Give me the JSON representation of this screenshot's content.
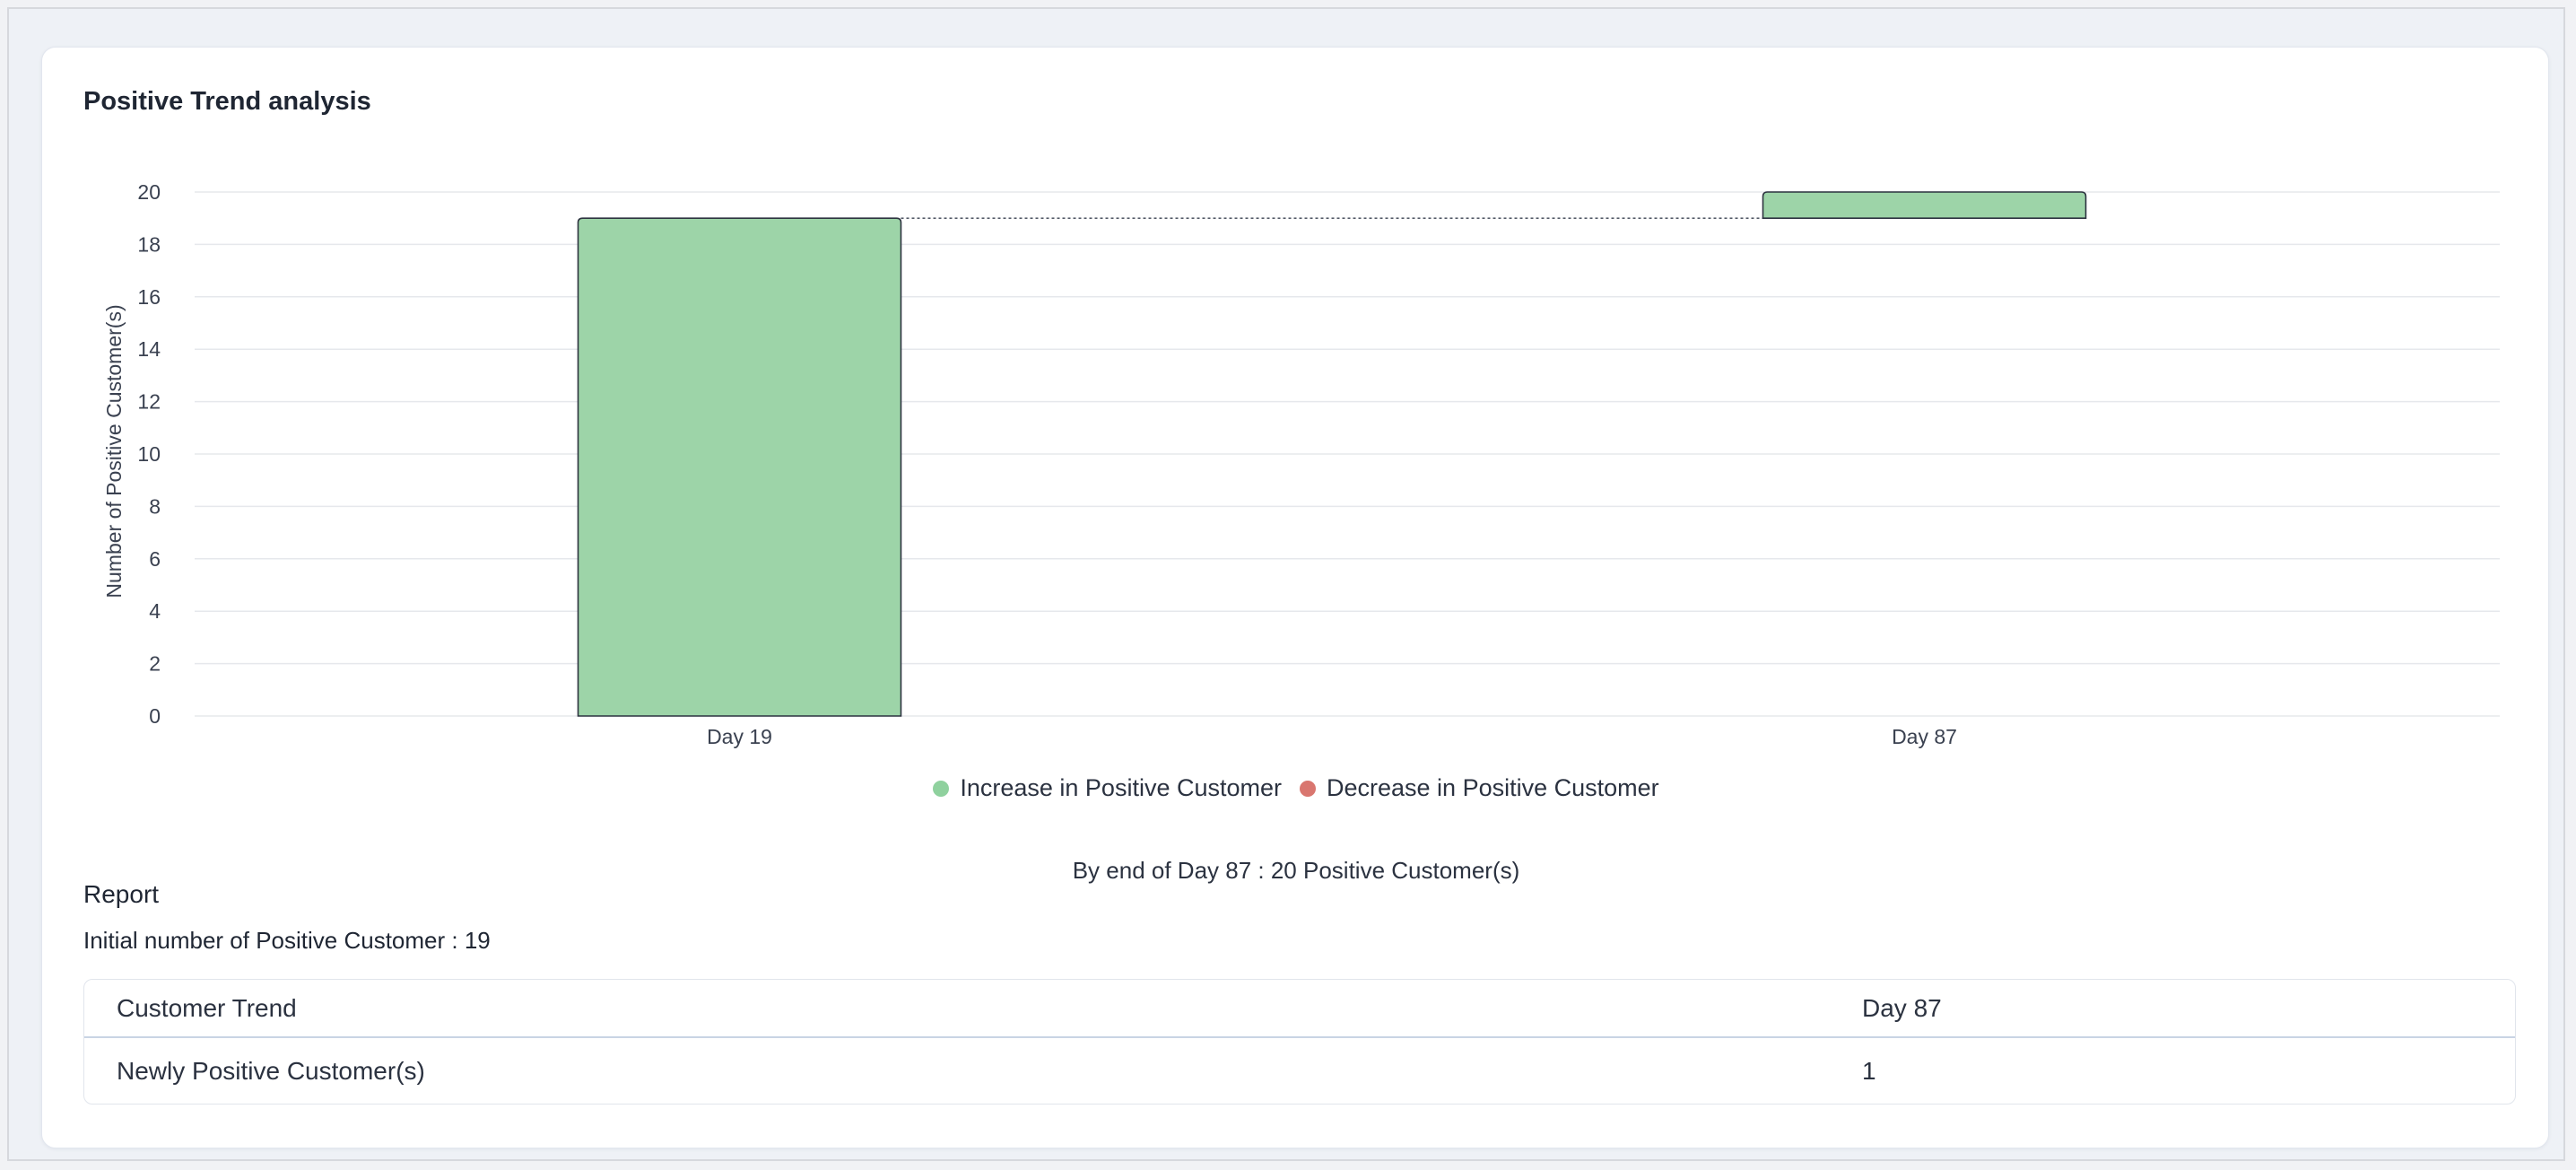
{
  "card": {
    "title": "Positive Trend analysis"
  },
  "chart_data": {
    "type": "bar",
    "subtype": "waterfall",
    "categories": [
      "Day 19",
      "Day 87"
    ],
    "series": [
      {
        "name": "Increase in Positive Customer",
        "color": "#9dd4a8",
        "bars": [
          {
            "category": "Day 19",
            "base": 0,
            "value": 19
          },
          {
            "category": "Day 87",
            "base": 19,
            "value": 1
          }
        ]
      }
    ],
    "connector": {
      "from": "Day 19",
      "to": "Day 87",
      "level": 19,
      "style": "dotted"
    },
    "ylabel": "Number of Positive Customer(s)",
    "xlabel": "",
    "ylim": [
      0,
      20
    ],
    "yticks": [
      0,
      2,
      4,
      6,
      8,
      10,
      12,
      14,
      16,
      18,
      20
    ],
    "grid": true,
    "legend": {
      "position": "bottom-center",
      "items": [
        {
          "label": "Increase in Positive Customer",
          "color": "#8fd19e"
        },
        {
          "label": "Decrease in Positive Customer",
          "color": "#d9766f"
        }
      ]
    },
    "bar_stroke_color": "#2d3340"
  },
  "summary": "By end of Day 87 : 20 Positive Customer(s)",
  "report": {
    "heading": "Report",
    "initial": "Initial number of Positive Customer : 19",
    "table": {
      "headers": [
        "Customer Trend",
        "Day 87"
      ],
      "rows": [
        [
          "Newly Positive Customer(s)",
          "1"
        ]
      ]
    }
  }
}
